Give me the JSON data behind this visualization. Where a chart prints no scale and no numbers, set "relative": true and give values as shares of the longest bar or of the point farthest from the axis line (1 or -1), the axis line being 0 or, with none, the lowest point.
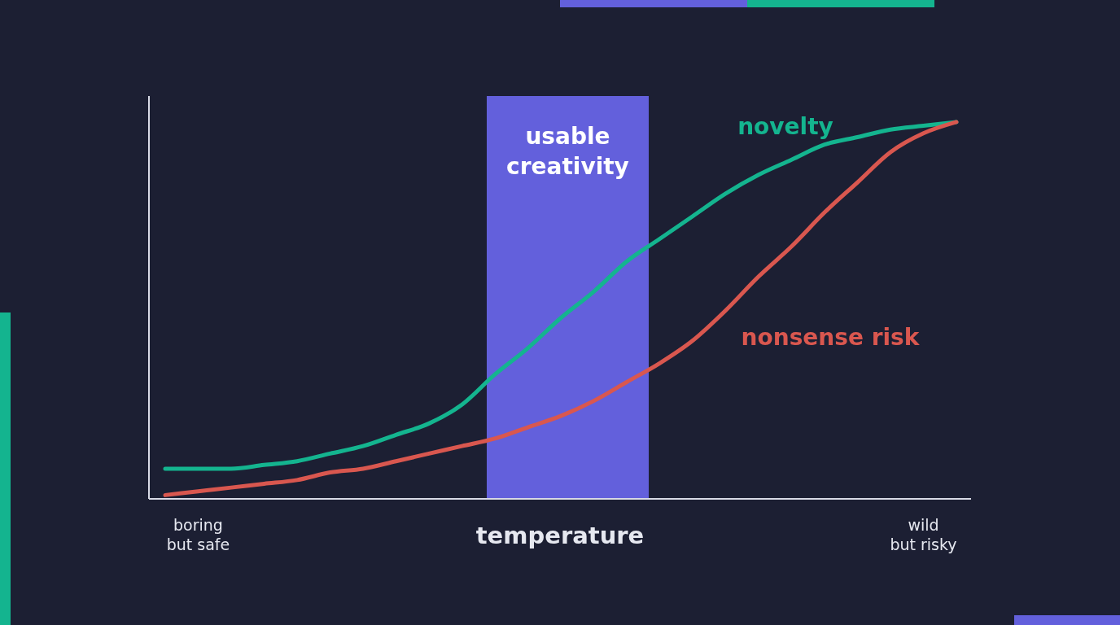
{
  "chart_data": {
    "type": "line",
    "relative": true,
    "xlabel": "temperature",
    "categories": [
      null,
      "boring\nbut safe",
      null,
      null,
      null,
      null,
      null,
      null,
      null,
      null,
      null,
      null,
      null,
      null,
      null,
      null,
      null,
      null,
      null,
      null,
      null,
      null,
      null,
      "wild\nbut risky",
      null
    ],
    "annotations": [
      "usable\ncreativity"
    ],
    "series": [
      {
        "name": "novelty",
        "color": "#14b48f",
        "values": [
          0.08,
          0.08,
          0.08,
          0.09,
          0.1,
          0.12,
          0.14,
          0.17,
          0.2,
          0.25,
          0.33,
          0.4,
          0.48,
          0.55,
          0.63,
          0.69,
          0.75,
          0.81,
          0.86,
          0.9,
          0.94,
          0.96,
          0.98,
          0.99,
          1
        ]
      },
      {
        "name": "nonsense risk",
        "color": "#d9574f",
        "values": [
          0.01,
          0.02,
          0.03,
          0.04,
          0.05,
          0.07,
          0.08,
          0.1,
          0.12,
          0.14,
          0.16,
          0.19,
          0.22,
          0.26,
          0.31,
          0.36,
          0.42,
          0.5,
          0.59,
          0.67,
          0.76,
          0.84,
          0.92,
          0.97,
          1
        ]
      }
    ],
    "line_style": "solid"
  }
}
